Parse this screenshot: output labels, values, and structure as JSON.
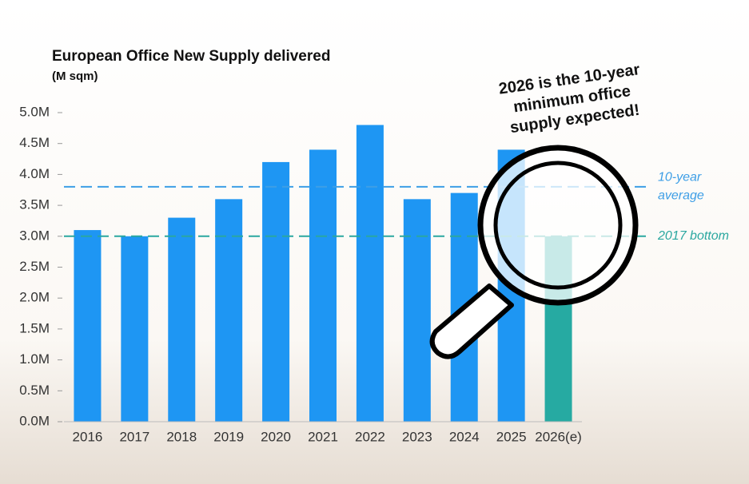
{
  "chart_data": {
    "type": "bar",
    "title": "European Office New Supply delivered",
    "subtitle": "(M sqm)",
    "categories": [
      "2016",
      "2017",
      "2018",
      "2019",
      "2020",
      "2021",
      "2022",
      "2023",
      "2024",
      "2025",
      "2026(e)"
    ],
    "values": [
      3.1,
      3.0,
      3.3,
      3.6,
      4.2,
      4.4,
      4.8,
      3.6,
      3.7,
      4.4,
      3.0
    ],
    "colors": [
      "#1e96f3",
      "#1e96f3",
      "#1e96f3",
      "#1e96f3",
      "#1e96f3",
      "#1e96f3",
      "#1e96f3",
      "#1e96f3",
      "#1e96f3",
      "#1e96f3",
      "#26aaa2"
    ],
    "ylim": [
      0,
      5
    ],
    "yticks": [
      {
        "value": 0,
        "label": "0.0M"
      },
      {
        "value": 0.5,
        "label": "0.5M"
      },
      {
        "value": 1,
        "label": "1.0M"
      },
      {
        "value": 1.5,
        "label": "1.5M"
      },
      {
        "value": 2,
        "label": "2.0M"
      },
      {
        "value": 2.5,
        "label": "2.5M"
      },
      {
        "value": 3,
        "label": "3.0M"
      },
      {
        "value": 3.5,
        "label": "3.5M"
      },
      {
        "value": 4,
        "label": "4.0M"
      },
      {
        "value": 4.5,
        "label": "4.5M"
      },
      {
        "value": 5,
        "label": "5.0M"
      }
    ],
    "reference_lines": [
      {
        "value": 3.8,
        "label_lines": [
          "10-year",
          "average"
        ],
        "color": "#3d9ee6"
      },
      {
        "value": 3.0,
        "label_lines": [
          "2017 bottom"
        ],
        "color": "#2aa7a0"
      }
    ],
    "annotation_lines": [
      "2026 is the 10-year",
      "minimum office",
      "supply expected!"
    ]
  }
}
